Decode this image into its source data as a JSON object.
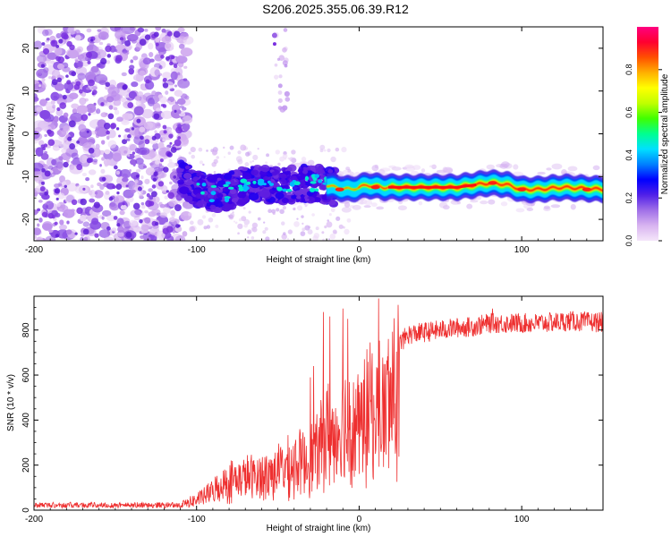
{
  "title": "S206.2025.355.06.39.R12",
  "chart_data": [
    {
      "type": "heatmap",
      "name": "spectrogram",
      "xlabel": "Height of straight line (km)",
      "ylabel": "Frequency (Hz)",
      "xlim": [
        -200,
        150
      ],
      "ylim": [
        -25,
        25
      ],
      "x_ticks": [
        -200,
        -100,
        0,
        100
      ],
      "y_ticks": [
        -20,
        -10,
        0,
        10,
        20
      ],
      "colorbar": {
        "label": "Normalized spectral amplitude",
        "range": [
          0,
          1
        ],
        "ticks": [
          "0.0",
          "0.2",
          "0.4",
          "0.6",
          "0.8"
        ],
        "colors": [
          "#ffffff",
          "#e6c8f5",
          "#9060e0",
          "#4010e0",
          "#0000ff",
          "#00c8ff",
          "#00ff80",
          "#80ff00",
          "#ffff00",
          "#ffa000",
          "#ff2000",
          "#ff0090"
        ]
      },
      "ridge": {
        "description_points_x": [
          -110,
          -95,
          -85,
          -75,
          -65,
          -55,
          -45,
          -35,
          -25,
          -15,
          -5,
          5,
          15,
          30,
          60,
          80,
          90,
          100,
          110,
          125,
          150
        ],
        "description_points_y": [
          -10.5,
          -13.5,
          -14.0,
          -12.5,
          -11.5,
          -12.0,
          -12.0,
          -11.5,
          -11.5,
          -12.5,
          -13.0,
          -12.0,
          -12.5,
          -12.5,
          -12.5,
          -11.5,
          -11.8,
          -13.0,
          -13.0,
          -12.5,
          -13.0
        ]
      }
    },
    {
      "type": "line",
      "name": "snr",
      "xlabel": "Height of straight line (km)",
      "ylabel": "SNR (10 * v/v)",
      "xlim": [
        -200,
        150
      ],
      "ylim": [
        0,
        950
      ],
      "x_ticks": [
        -200,
        -100,
        0,
        100
      ],
      "y_ticks": [
        0,
        200,
        400,
        600,
        800
      ],
      "color": "#ee3030",
      "envelope_x": [
        -200,
        -120,
        -110,
        -100,
        -90,
        -80,
        -70,
        -60,
        -50,
        -40,
        -30,
        -25,
        -20,
        -15,
        -10,
        -5,
        0,
        5,
        10,
        15,
        20,
        25,
        30,
        40,
        50,
        60,
        70,
        80,
        90,
        100,
        110,
        120,
        130,
        140,
        150
      ],
      "envelope_y": [
        15,
        18,
        30,
        60,
        110,
        170,
        190,
        200,
        230,
        260,
        300,
        340,
        450,
        420,
        480,
        520,
        480,
        560,
        600,
        560,
        700,
        740,
        780,
        790,
        800,
        810,
        815,
        830,
        830,
        830,
        830,
        835,
        840,
        835,
        835
      ],
      "spikes": [
        {
          "x": -30,
          "y": 590
        },
        {
          "x": -28,
          "y": 640
        },
        {
          "x": -22,
          "y": 880
        },
        {
          "x": -18,
          "y": 860
        },
        {
          "x": -10,
          "y": 895
        },
        {
          "x": -7,
          "y": 850
        },
        {
          "x": 12,
          "y": 940
        },
        {
          "x": 10,
          "y": 250
        },
        {
          "x": 82,
          "y": 895
        }
      ]
    }
  ]
}
